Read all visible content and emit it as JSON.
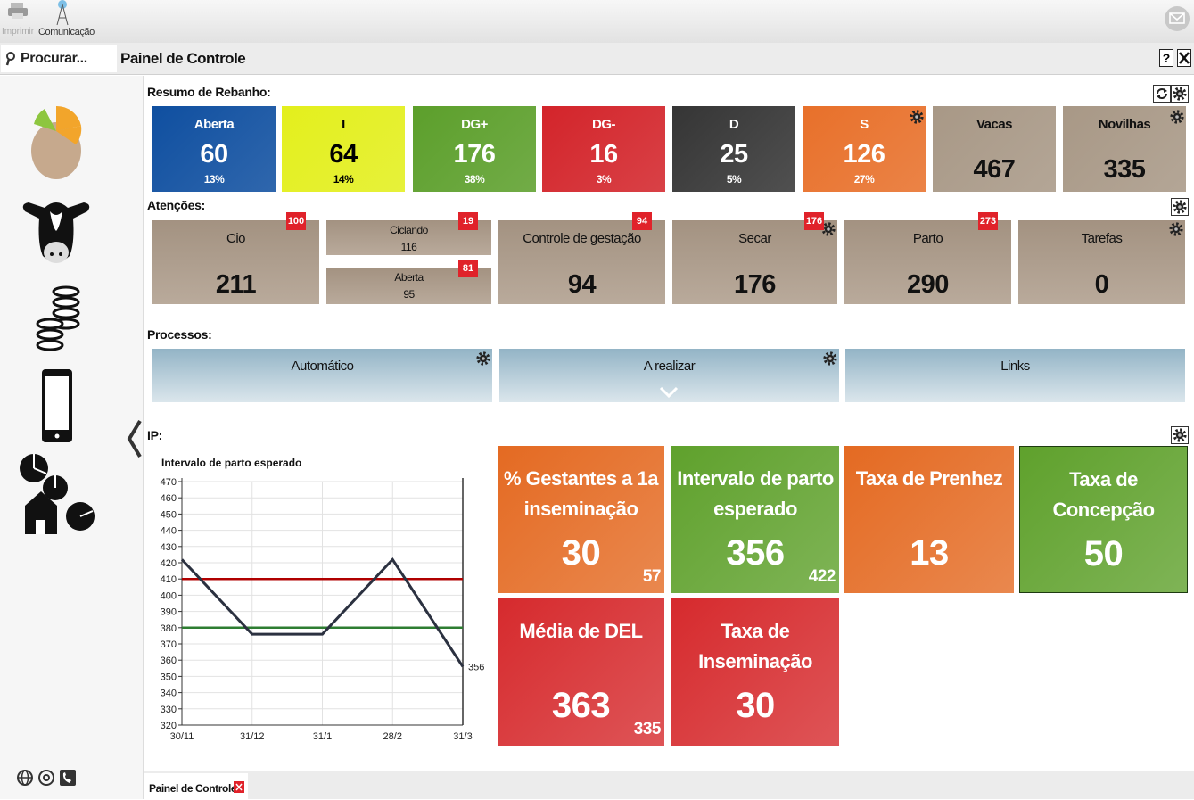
{
  "toolbar": {
    "print": "Imprimir",
    "communication": "Comunicação"
  },
  "search_placeholder": "Procurar...",
  "page_title": "Painel de Controle",
  "help": "?",
  "rebanho": {
    "title": "Resumo de Rebanho:",
    "cards": [
      {
        "label": "Aberta",
        "value": 60,
        "percent": "13%",
        "color": "#0f4fa0"
      },
      {
        "label": "I",
        "value": 64,
        "percent": "14%",
        "color": "#e3ef1c",
        "text_color": "#000000"
      },
      {
        "label": "DG+",
        "value": 176,
        "percent": "38%",
        "color": "#5c9f2b"
      },
      {
        "label": "DG-",
        "value": 16,
        "percent": "3%",
        "color": "#d3242a"
      },
      {
        "label": "D",
        "value": 25,
        "percent": "5%",
        "color": "#353535"
      },
      {
        "label": "S",
        "value": 126,
        "percent": "27%",
        "color": "#e8702a"
      },
      {
        "label": "Vacas",
        "value": 467,
        "color": "#a89886",
        "text_color": "#111111"
      },
      {
        "label": "Novilhas",
        "value": 335,
        "color": "#a89886",
        "text_color": "#111111"
      }
    ]
  },
  "atencoes": {
    "title": "Atenções:",
    "cards": [
      {
        "label": "Cio",
        "value": 211,
        "badge": 100
      },
      {
        "label": "Ciclando",
        "value": 116,
        "badge": 19
      },
      {
        "label": "Aberta",
        "value": 95,
        "badge": 81
      },
      {
        "label": "Controle de gestação",
        "value": 94,
        "badge": 94
      },
      {
        "label": "Secar",
        "value": 176,
        "badge": 176
      },
      {
        "label": "Parto",
        "value": 290,
        "badge": 273
      },
      {
        "label": "Tarefas",
        "value": 0
      }
    ]
  },
  "processos": {
    "title": "Processos:",
    "items": [
      "Automático",
      "A realizar",
      "Links"
    ]
  },
  "ip": {
    "title": "IP:",
    "cards": [
      {
        "title": "% Gestantes a 1a inseminação",
        "value": 30,
        "sub": 57,
        "color": "#e46a22"
      },
      {
        "title": "Intervalo de parto esperado",
        "value": 356,
        "sub": 422,
        "color": "#5fa12c"
      },
      {
        "title": "Taxa de Prenhez",
        "value": 13,
        "color": "#e46a22"
      },
      {
        "title": "Taxa de Concepção",
        "value": 50,
        "color": "#5fa12c"
      },
      {
        "title": "Média de DEL",
        "value": 363,
        "sub": 335,
        "color": "#d62a2d"
      },
      {
        "title": "Taxa de Inseminação",
        "value": 30,
        "color": "#d62a2d"
      }
    ]
  },
  "chart_data": {
    "type": "line",
    "title": "Intervalo de parto esperado",
    "categories": [
      "30/11",
      "31/12",
      "31/1",
      "28/2",
      "31/3"
    ],
    "values": [
      422,
      376,
      376,
      422,
      356
    ],
    "color": "#2b3140",
    "ylim": [
      320,
      470
    ],
    "yticks": [
      320,
      330,
      340,
      350,
      360,
      370,
      380,
      390,
      400,
      410,
      420,
      430,
      440,
      450,
      460,
      470
    ],
    "reference_lines": [
      {
        "value": 410,
        "color": "#b00000"
      },
      {
        "value": 380,
        "color": "#2e7d32"
      }
    ],
    "grid": true
  },
  "tab": "Painel de Controle"
}
